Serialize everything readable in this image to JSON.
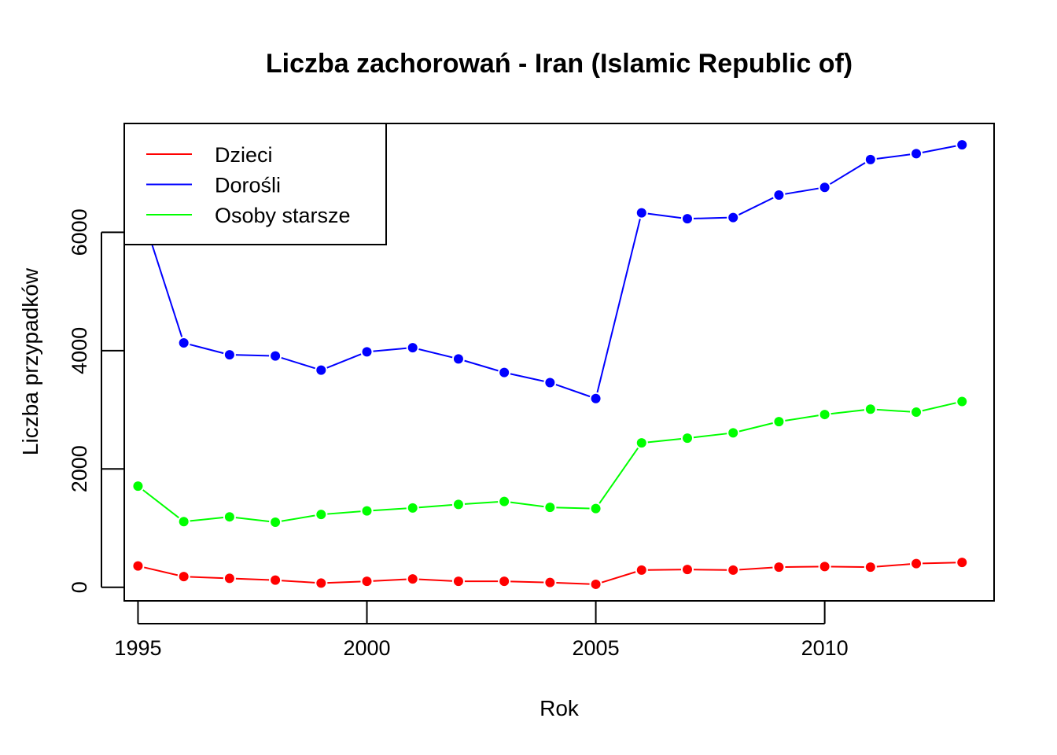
{
  "chart_data": {
    "type": "line",
    "title": "Liczba zachorowań -  Iran (Islamic Republic of)",
    "xlabel": "Rok",
    "ylabel": "Liczba przypadków",
    "xlim": [
      1994.7,
      2013.7
    ],
    "ylim": [
      -230,
      7840
    ],
    "x": [
      1995,
      1996,
      1997,
      1998,
      1999,
      2000,
      2001,
      2002,
      2003,
      2004,
      2005,
      2006,
      2007,
      2008,
      2009,
      2010,
      2011,
      2012,
      2013
    ],
    "x_ticks": [
      "1995",
      "2000",
      "2005",
      "2010"
    ],
    "y_ticks": [
      "0",
      "2000",
      "4000",
      "6000"
    ],
    "legend_position": "top-left",
    "grid": false,
    "series": [
      {
        "name": "Dzieci",
        "color": "#ff0000",
        "values": [
          360,
          180,
          150,
          120,
          70,
          100,
          140,
          100,
          100,
          80,
          50,
          290,
          300,
          290,
          340,
          350,
          340,
          400,
          420
        ]
      },
      {
        "name": "Dorośli",
        "color": "#0000ff",
        "values": [
          6530,
          4130,
          3930,
          3910,
          3670,
          3980,
          4050,
          3860,
          3630,
          3460,
          3190,
          6330,
          6230,
          6250,
          6630,
          6760,
          7230,
          7330,
          7480
        ]
      },
      {
        "name": "Osoby starsze",
        "color": "#00ff00",
        "values": [
          1710,
          1110,
          1190,
          1100,
          1230,
          1290,
          1340,
          1400,
          1450,
          1350,
          1330,
          2440,
          2520,
          2610,
          2800,
          2920,
          3010,
          2960,
          3140
        ]
      }
    ]
  }
}
